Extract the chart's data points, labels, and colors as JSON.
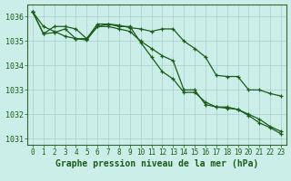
{
  "title": "Graphe pression niveau de la mer (hPa)",
  "background_color": "#cceee8",
  "grid_color": "#aacccc",
  "line_color": "#1a5c1a",
  "axis_color": "#336633",
  "series": [
    [
      1036.2,
      1035.6,
      1035.4,
      1035.2,
      1035.1,
      1035.1,
      1035.6,
      1035.6,
      1035.5,
      1035.4,
      1035.0,
      1034.7,
      1034.4,
      1034.2,
      1033.0,
      1033.0,
      1032.4,
      1032.3,
      1032.3,
      1032.2,
      1032.0,
      1031.8,
      1031.5,
      1031.3
    ],
    [
      1036.2,
      1035.3,
      1035.35,
      1035.5,
      1035.1,
      1035.05,
      1035.6,
      1035.7,
      1035.65,
      1035.55,
      1035.5,
      1035.4,
      1035.5,
      1035.5,
      1035.0,
      1034.7,
      1034.35,
      1033.6,
      1033.55,
      1033.55,
      1033.0,
      1033.0,
      1032.85,
      1032.75
    ],
    [
      1036.2,
      1035.3,
      1035.6,
      1035.6,
      1035.5,
      1035.1,
      1035.7,
      1035.7,
      1035.6,
      1035.6,
      1034.95,
      1034.35,
      1033.75,
      1033.45,
      1032.9,
      1032.9,
      1032.5,
      1032.3,
      1032.25,
      1032.2,
      1031.95,
      1031.65,
      1031.45,
      1031.2
    ]
  ],
  "ylim": [
    1030.75,
    1036.5
  ],
  "yticks": [
    1031,
    1032,
    1033,
    1034,
    1035,
    1036
  ],
  "xlim": [
    -0.5,
    23.5
  ],
  "xticks": [
    0,
    1,
    2,
    3,
    4,
    5,
    6,
    7,
    8,
    9,
    10,
    11,
    12,
    13,
    14,
    15,
    16,
    17,
    18,
    19,
    20,
    21,
    22,
    23
  ],
  "figsize": [
    3.2,
    2.0
  ],
  "dpi": 100,
  "ylabel_fontsize": 6,
  "xlabel_fontsize": 7,
  "tick_labelsize": 5.5,
  "linewidth": 0.9,
  "markersize": 3.0
}
